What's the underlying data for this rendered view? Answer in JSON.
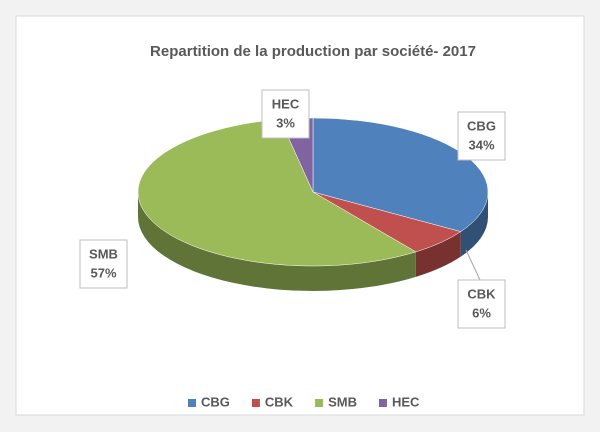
{
  "chart_data": {
    "type": "pie",
    "title": "Repartition de la production par société- 2017",
    "categories": [
      "CBG",
      "CBK",
      "SMB",
      "HEC"
    ],
    "values": [
      34,
      6,
      57,
      3
    ],
    "value_labels": [
      "34%",
      "6%",
      "57%",
      "3%"
    ],
    "colors": [
      "#4f81bd",
      "#c0504d",
      "#9bbb59",
      "#8064a2"
    ],
    "legend": "bottom"
  }
}
